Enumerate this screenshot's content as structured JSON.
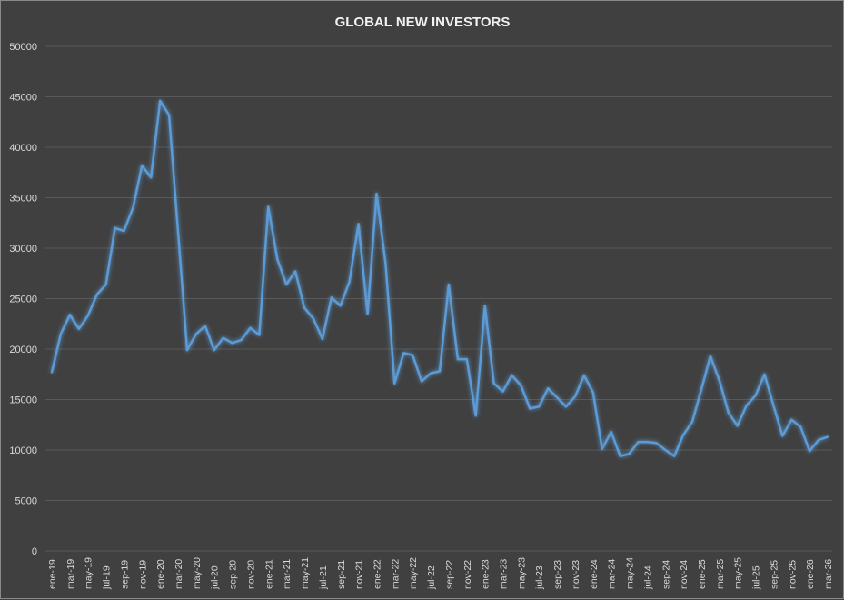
{
  "chart_data": {
    "type": "line",
    "title": "GLOBAL NEW INVESTORS",
    "xlabel": "",
    "ylabel": "",
    "ylim": [
      0,
      50000
    ],
    "y_ticks": [
      "0",
      "5000",
      "10000",
      "15000",
      "20000",
      "25000",
      "30000",
      "35000",
      "40000",
      "45000",
      "50000"
    ],
    "grid": true,
    "legend": "none",
    "x_tick_labels": [
      "ene-19",
      "mar-19",
      "may-19",
      "jul-19",
      "sep-19",
      "nov-19",
      "ene-20",
      "mar-20",
      "may-20",
      "jul-20",
      "sep-20",
      "nov-20",
      "ene-21",
      "mar-21",
      "may-21",
      "jul-21",
      "sep-21",
      "nov-21",
      "ene-22",
      "mar-22",
      "may-22",
      "jul-22",
      "sep-22",
      "nov-22",
      "ene-23",
      "mar-23",
      "may-23",
      "jul-23",
      "sep-23",
      "nov-23",
      "ene-24",
      "mar-24",
      "may-24",
      "jul-24",
      "sep-24",
      "nov-24",
      "ene-25",
      "mar-25",
      "may-25",
      "jul-25",
      "sep-25",
      "nov-25",
      "ene-26",
      "mar-26"
    ],
    "x_range": [
      "ene-19",
      "mar-26"
    ],
    "series": [
      {
        "name": "New investors",
        "color": "#5b9bd5",
        "values": [
          17700,
          21500,
          23400,
          22000,
          23300,
          25400,
          26400,
          32000,
          31700,
          34000,
          38200,
          37000,
          44600,
          43200,
          31600,
          19900,
          21500,
          22300,
          19900,
          21100,
          20600,
          20900,
          22100,
          21400,
          34100,
          28900,
          26400,
          27700,
          24100,
          23000,
          21000,
          25100,
          24300,
          26700,
          32400,
          23500,
          35400,
          28500,
          16600,
          19600,
          19400,
          16800,
          17600,
          17800,
          26400,
          19000,
          19000,
          13400,
          24300,
          16600,
          15800,
          17400,
          16400,
          14100,
          14300,
          16100,
          15200,
          14300,
          15300,
          17400,
          15700,
          10100,
          11800,
          9400,
          9600,
          10800,
          10800,
          10700,
          10000,
          9400,
          11500,
          12800,
          16000,
          19300,
          16900,
          13700,
          12400,
          14400,
          15400,
          17500,
          14400,
          11400,
          13000,
          12300,
          9900,
          11000,
          11300
        ]
      }
    ]
  },
  "colors": {
    "background": "#404040",
    "grid": "#595959",
    "line": "#5b9bd5",
    "text": "#d9d9d9"
  }
}
